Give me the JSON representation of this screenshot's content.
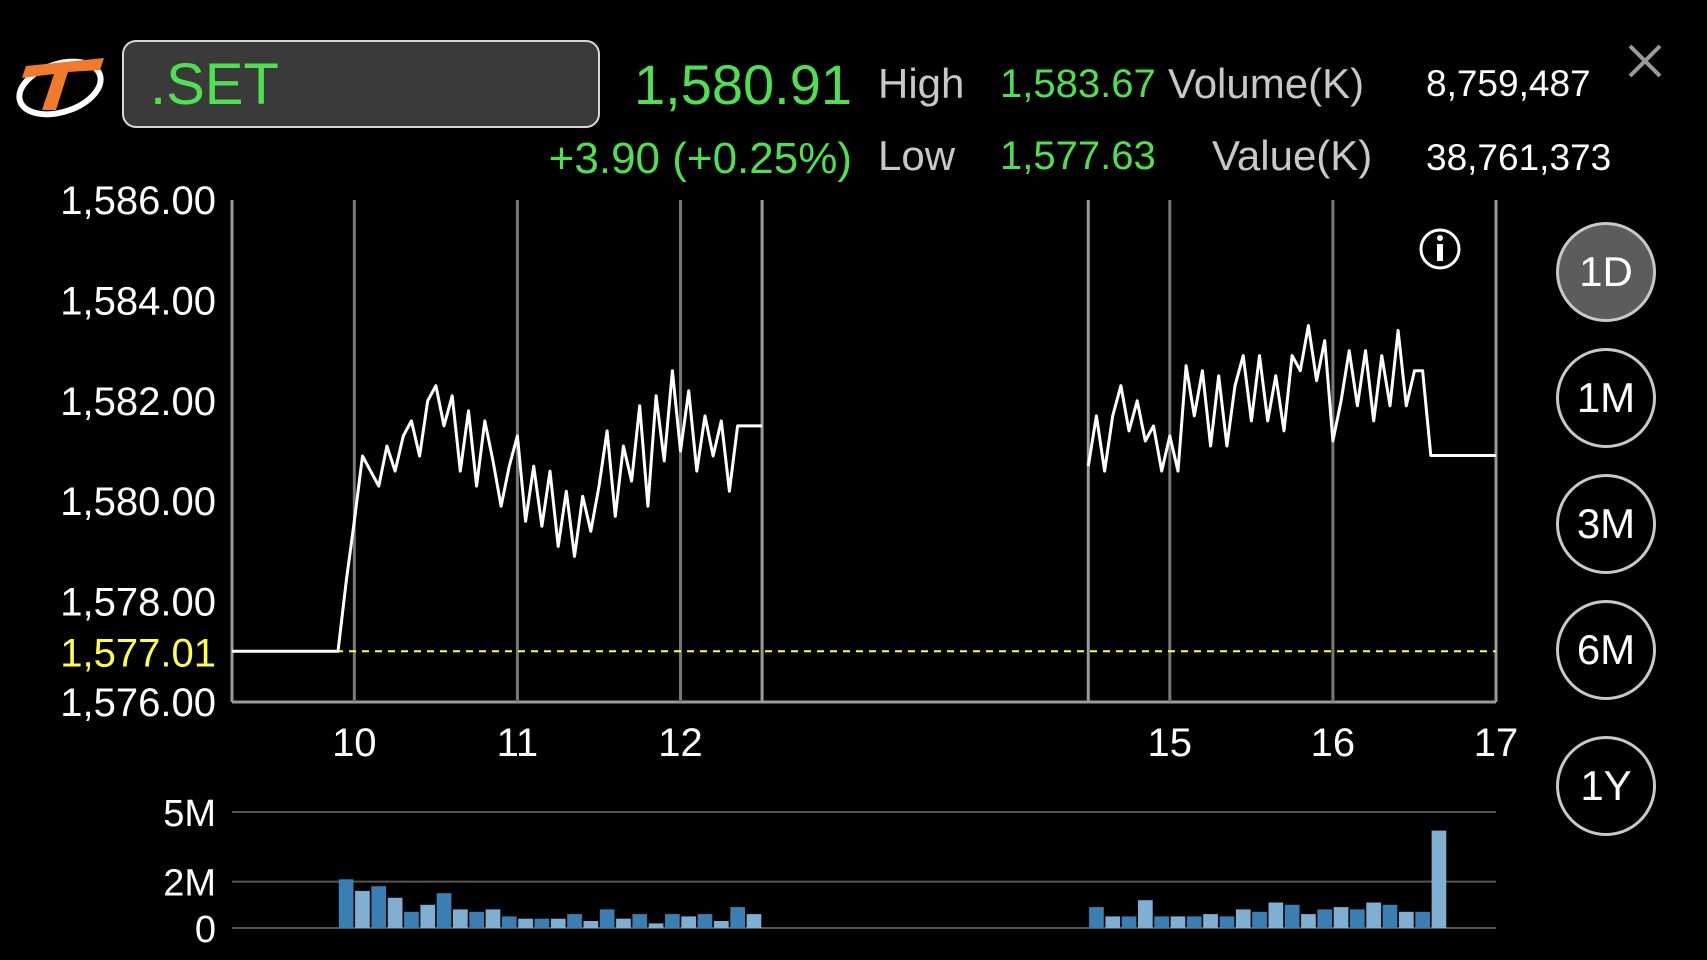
{
  "header": {
    "logo_icon": "thaibma-logo-icon",
    "symbol": ".SET",
    "last_price": "1,580.91",
    "change": "+3.90 (+0.25%)",
    "high_label": "High",
    "high_value": "1,583.67",
    "low_label": "Low",
    "low_value": "1,577.63",
    "volume_label": "Volume(K)",
    "volume_value": "8,759,487",
    "value_label": "Value(K)",
    "value_value": "38,761,373",
    "close_icon": "close-icon"
  },
  "info_icon": "info-icon",
  "periods": [
    {
      "label": "1D",
      "active": true
    },
    {
      "label": "1M",
      "active": false
    },
    {
      "label": "3M",
      "active": false
    },
    {
      "label": "6M",
      "active": false
    },
    {
      "label": "1Y",
      "active": false
    }
  ],
  "colors": {
    "up": "#4ee04e",
    "reference": "#ffff4d",
    "line": "#ffffff",
    "volume_dark": "#3a7fb4",
    "volume_light": "#7fb0d2",
    "grid": "#777777"
  },
  "chart_data": [
    {
      "type": "line",
      "y_tick_labels": [
        "1,586.00",
        "1,584.00",
        "1,582.00",
        "1,580.00",
        "1,578.00",
        "1,576.00"
      ],
      "y_ticks": [
        1586,
        1584,
        1582,
        1580,
        1578,
        1576
      ],
      "ylim": [
        1576,
        1586
      ],
      "reference_label": "1,577.01",
      "reference_value": 1577.01,
      "x_tick_labels": [
        "10",
        "11",
        "12",
        "15",
        "16",
        "17"
      ],
      "x_ticks": [
        10,
        11,
        12,
        15,
        16,
        17
      ],
      "xlim": [
        9.25,
        17
      ],
      "session_break": [
        12.5,
        14.5
      ],
      "grid": true,
      "series": [
        {
          "morning_x": [
            9.25,
            9.9,
            9.95,
            10.0,
            10.05,
            10.1,
            10.15,
            10.2,
            10.25,
            10.3,
            10.35,
            10.4,
            10.45,
            10.5,
            10.55,
            10.6,
            10.65,
            10.7,
            10.75,
            10.8,
            10.85,
            10.9,
            10.95,
            11.0,
            11.05,
            11.1,
            11.15,
            11.2,
            11.25,
            11.3,
            11.35,
            11.4,
            11.45,
            11.5,
            11.55,
            11.6,
            11.65,
            11.7,
            11.75,
            11.8,
            11.85,
            11.9,
            11.95,
            12.0,
            12.05,
            12.1,
            12.15,
            12.2,
            12.25,
            12.3,
            12.35,
            12.4,
            12.45,
            12.5
          ],
          "morning_y": [
            1577.01,
            1577.01,
            1578.4,
            1579.6,
            1580.9,
            1580.6,
            1580.3,
            1581.1,
            1580.6,
            1581.3,
            1581.6,
            1580.9,
            1582.0,
            1582.3,
            1581.5,
            1582.1,
            1580.6,
            1581.8,
            1580.3,
            1581.6,
            1580.8,
            1579.9,
            1580.7,
            1581.3,
            1579.6,
            1580.7,
            1579.5,
            1580.6,
            1579.1,
            1580.2,
            1578.9,
            1580.1,
            1579.4,
            1580.3,
            1581.4,
            1579.7,
            1581.1,
            1580.4,
            1581.9,
            1579.9,
            1582.1,
            1580.8,
            1582.6,
            1581.0,
            1582.2,
            1580.6,
            1581.7,
            1580.9,
            1581.6,
            1580.2,
            1581.5,
            1581.5,
            1581.5,
            1581.5
          ],
          "afternoon_x": [
            14.5,
            14.55,
            14.6,
            14.65,
            14.7,
            14.75,
            14.8,
            14.85,
            14.9,
            14.95,
            15.0,
            15.05,
            15.1,
            15.15,
            15.2,
            15.25,
            15.3,
            15.35,
            15.4,
            15.45,
            15.5,
            15.55,
            15.6,
            15.65,
            15.7,
            15.75,
            15.8,
            15.85,
            15.9,
            15.95,
            16.0,
            16.05,
            16.1,
            16.15,
            16.2,
            16.25,
            16.3,
            16.35,
            16.4,
            16.45,
            16.5,
            16.55,
            16.6,
            16.65,
            16.7,
            17.0
          ],
          "afternoon_y": [
            1580.7,
            1581.7,
            1580.6,
            1581.7,
            1582.3,
            1581.4,
            1582.0,
            1581.2,
            1581.5,
            1580.6,
            1581.3,
            1580.6,
            1582.7,
            1581.7,
            1582.6,
            1581.1,
            1582.5,
            1581.1,
            1582.3,
            1582.9,
            1581.6,
            1582.9,
            1581.6,
            1582.5,
            1581.4,
            1582.9,
            1582.6,
            1583.5,
            1582.4,
            1583.2,
            1581.2,
            1582.0,
            1583.0,
            1581.9,
            1583.0,
            1581.6,
            1582.9,
            1581.9,
            1583.4,
            1581.9,
            1582.6,
            1582.6,
            1580.91,
            1580.91,
            1580.91,
            1580.91
          ]
        }
      ]
    },
    {
      "type": "bar",
      "y_tick_labels": [
        "5M",
        "2M",
        "0"
      ],
      "y_ticks": [
        5000000,
        2000000,
        0
      ],
      "ylim": [
        0,
        5000000
      ],
      "grid": true,
      "bar_x": [
        9.95,
        10.05,
        10.15,
        10.25,
        10.35,
        10.45,
        10.55,
        10.65,
        10.75,
        10.85,
        10.95,
        11.05,
        11.15,
        11.25,
        11.35,
        11.45,
        11.55,
        11.65,
        11.75,
        11.85,
        11.95,
        12.05,
        12.15,
        12.25,
        12.35,
        12.45,
        14.55,
        14.65,
        14.75,
        14.85,
        14.95,
        15.05,
        15.15,
        15.25,
        15.35,
        15.45,
        15.55,
        15.65,
        15.75,
        15.85,
        15.95,
        16.05,
        16.15,
        16.25,
        16.35,
        16.45,
        16.55,
        16.65
      ],
      "values": [
        2100000,
        1600000,
        1800000,
        1300000,
        700000,
        1000000,
        1500000,
        800000,
        700000,
        800000,
        500000,
        400000,
        400000,
        400000,
        600000,
        300000,
        800000,
        400000,
        600000,
        200000,
        600000,
        500000,
        600000,
        300000,
        900000,
        600000,
        900000,
        500000,
        500000,
        1200000,
        500000,
        500000,
        500000,
        600000,
        500000,
        800000,
        700000,
        1100000,
        1000000,
        600000,
        800000,
        900000,
        800000,
        1100000,
        1000000,
        700000,
        700000,
        4200000
      ],
      "bar_color_variant": [
        "dark",
        "light",
        "dark",
        "light",
        "dark",
        "light",
        "dark",
        "light",
        "dark",
        "light",
        "dark",
        "light",
        "dark",
        "light",
        "dark",
        "light",
        "dark",
        "light",
        "dark",
        "light",
        "dark",
        "light",
        "dark",
        "light",
        "dark",
        "light",
        "dark",
        "light",
        "dark",
        "light",
        "dark",
        "light",
        "dark",
        "light",
        "dark",
        "light",
        "dark",
        "light",
        "dark",
        "light",
        "dark",
        "light",
        "dark",
        "light",
        "dark",
        "light",
        "dark",
        "light"
      ]
    }
  ]
}
